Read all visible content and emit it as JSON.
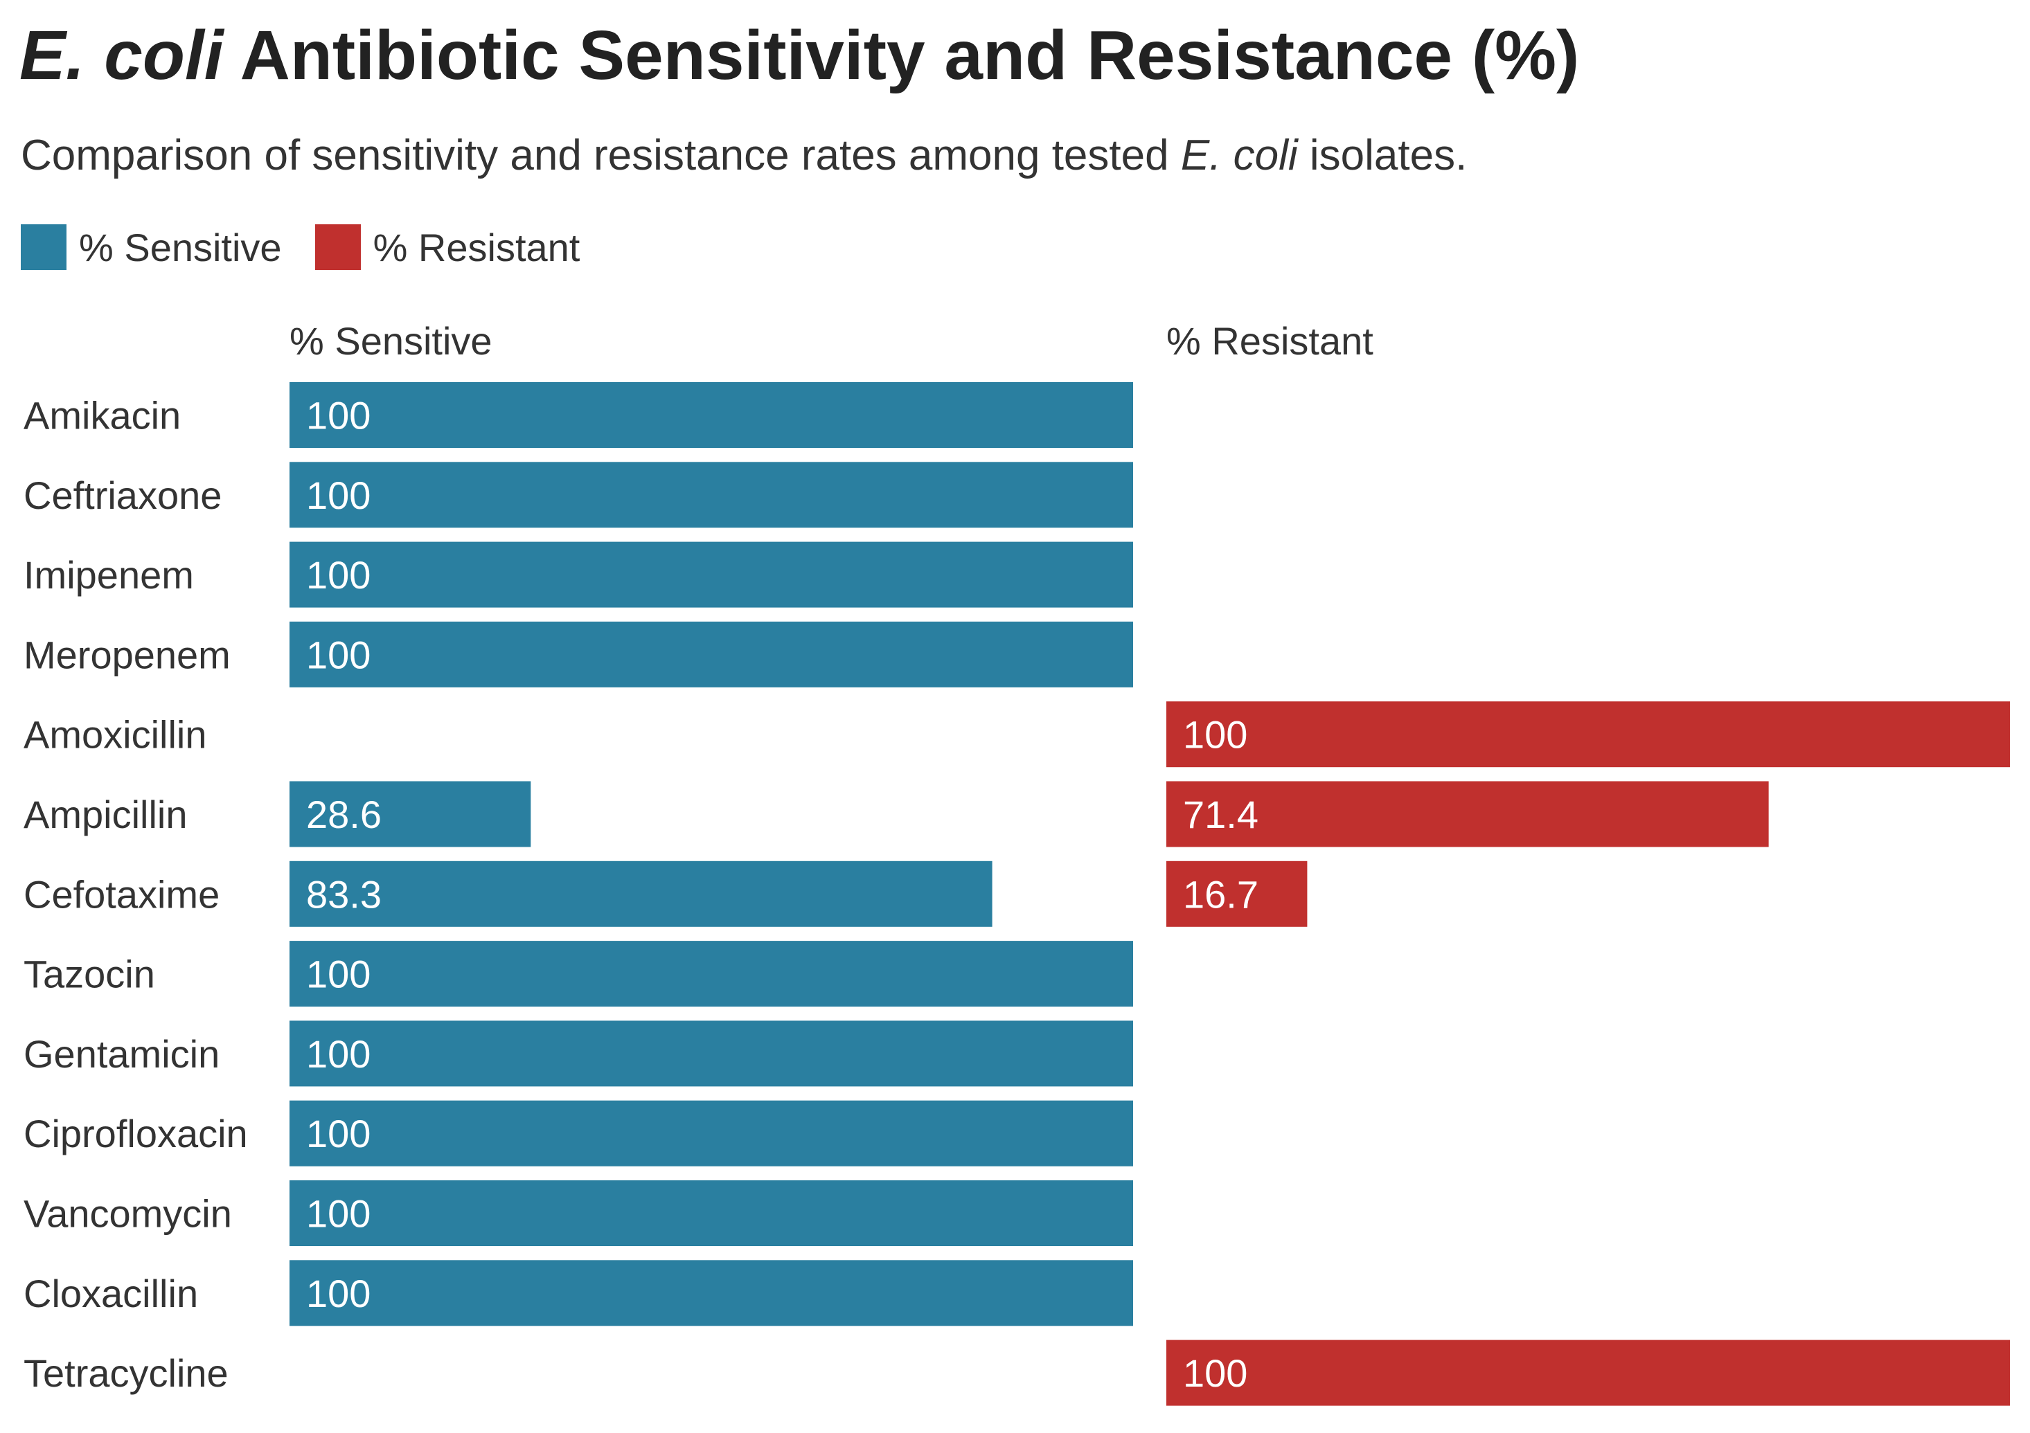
{
  "chart_data": {
    "type": "bar",
    "title_italic": "E. coli",
    "title_rest": " Antibiotic Sensitivity and Resistance (%)",
    "subtitle_before": "Comparison of sensitivity and resistance rates among tested ",
    "subtitle_italic": "E. coli",
    "subtitle_after": " isolates.",
    "legend": [
      {
        "name": "% Sensitive",
        "color": "#2a7fa0"
      },
      {
        "name": "% Resistant",
        "color": "#c0302e"
      }
    ],
    "categories": [
      "Amikacin",
      "Ceftriaxone",
      "Imipenem",
      "Meropenem",
      "Amoxicillin",
      "Ampicillin",
      "Cefotaxime",
      "Tazocin",
      "Gentamicin",
      "Ciprofloxacin",
      "Vancomycin",
      "Cloxacillin",
      "Tetracycline"
    ],
    "series": [
      {
        "name": "% Sensitive",
        "color": "#2a7fa0",
        "values": [
          100,
          100,
          100,
          100,
          null,
          28.6,
          83.3,
          100,
          100,
          100,
          100,
          100,
          null
        ]
      },
      {
        "name": "% Resistant",
        "color": "#c0302e",
        "values": [
          null,
          null,
          null,
          null,
          100,
          71.4,
          16.7,
          null,
          null,
          null,
          null,
          null,
          100
        ]
      }
    ],
    "xlim": [
      0,
      100
    ]
  }
}
